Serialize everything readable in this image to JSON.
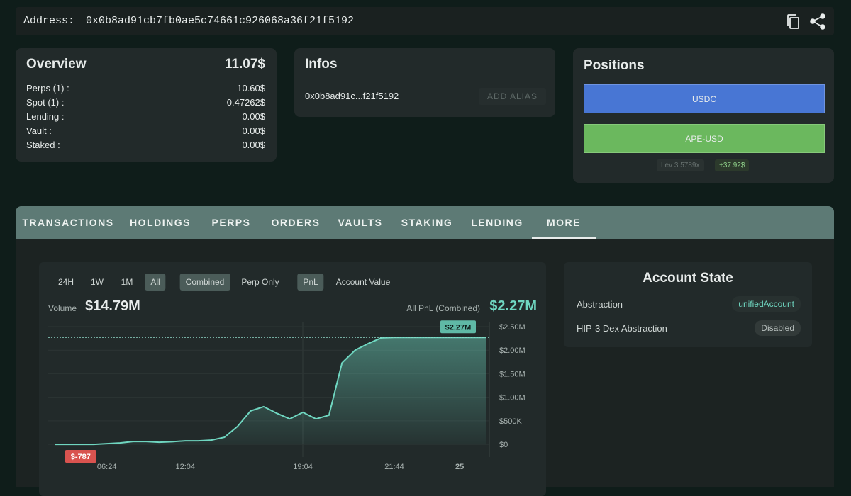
{
  "header": {
    "address_label": "Address:",
    "address": "0x0b8ad91cb7fb0ae5c74661c926068a36f21f5192"
  },
  "overview": {
    "title": "Overview",
    "total": "11.07$",
    "rows": [
      {
        "label": "Perps (1) :",
        "value": "10.60$"
      },
      {
        "label": "Spot (1) :",
        "value": "0.47262$"
      },
      {
        "label": "Lending :",
        "value": "0.00$"
      },
      {
        "label": "Vault :",
        "value": "0.00$"
      },
      {
        "label": "Staked :",
        "value": "0.00$"
      }
    ]
  },
  "infos": {
    "title": "Infos",
    "address": "0x0b8ad91c...f21f5192",
    "button": "ADD ALIAS"
  },
  "positions": {
    "title": "Positions",
    "items": [
      "USDC",
      "APE-USD"
    ],
    "leverage_label": "Lev",
    "leverage": "3.5789x",
    "pnl": "+37.92$"
  },
  "tabs": [
    "TRANSACTIONS",
    "HOLDINGS",
    "PERPS",
    "ORDERS",
    "VAULTS",
    "STAKING",
    "LENDING",
    "MORE"
  ],
  "chart_panel": {
    "ranges": [
      "24H",
      "1W",
      "1M",
      "All"
    ],
    "modes": [
      "Combined",
      "Perp Only"
    ],
    "metrics": [
      "PnL",
      "Account Value"
    ],
    "volume_label": "Volume",
    "volume": "$14.79M",
    "pnl_label": "All PnL (Combined)",
    "pnl": "$2.27M"
  },
  "account_state": {
    "title": "Account State",
    "rows": [
      {
        "label": "Abstraction",
        "value": "unifiedAccount"
      },
      {
        "label": "HIP-3 Dex Abstraction",
        "value": "Disabled"
      }
    ]
  },
  "chart_data": {
    "type": "area",
    "color": "#6fd6c0",
    "categories": [
      null,
      null,
      null,
      null,
      "06:24",
      null,
      null,
      null,
      null,
      null,
      "12:04",
      null,
      null,
      null,
      null,
      null,
      null,
      null,
      null,
      "19:04",
      null,
      null,
      null,
      null,
      null,
      null,
      "21:44",
      null,
      null,
      null,
      null,
      "25",
      null,
      null
    ],
    "values": [
      -300,
      -500,
      -787,
      -600,
      15000,
      30000,
      60000,
      60000,
      45000,
      55000,
      75000,
      75000,
      90000,
      150000,
      380000,
      710000,
      800000,
      660000,
      540000,
      680000,
      540000,
      620000,
      1730000,
      2000000,
      2140000,
      2260000,
      2270000,
      2270000,
      2270000,
      2270000,
      2270000,
      2270000,
      2270000,
      2270000
    ],
    "ylim": [
      -270000,
      2590000
    ],
    "yticks": [
      {
        "value": 0,
        "label": "$0"
      },
      {
        "value": 500000,
        "label": "$500K"
      },
      {
        "value": 1000000,
        "label": "$1.00M"
      },
      {
        "value": 1500000,
        "label": "$1.50M"
      },
      {
        "value": 2000000,
        "label": "$2.00M"
      },
      {
        "value": 2500000,
        "label": "$2.50M"
      }
    ],
    "grid": true,
    "annotations": [
      {
        "label": "$2.27M"
      },
      {
        "label": "$-787"
      }
    ]
  }
}
